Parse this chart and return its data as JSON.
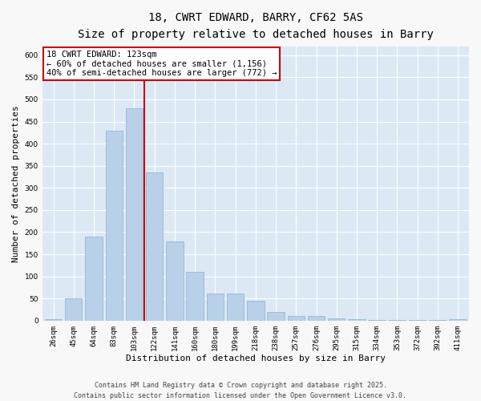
{
  "title": "18, CWRT EDWARD, BARRY, CF62 5AS",
  "subtitle": "Size of property relative to detached houses in Barry",
  "xlabel": "Distribution of detached houses by size in Barry",
  "ylabel": "Number of detached properties",
  "categories": [
    "26sqm",
    "45sqm",
    "64sqm",
    "83sqm",
    "103sqm",
    "122sqm",
    "141sqm",
    "160sqm",
    "180sqm",
    "199sqm",
    "218sqm",
    "238sqm",
    "257sqm",
    "276sqm",
    "295sqm",
    "315sqm",
    "334sqm",
    "353sqm",
    "372sqm",
    "392sqm",
    "411sqm"
  ],
  "values": [
    3,
    50,
    190,
    430,
    480,
    335,
    180,
    110,
    62,
    62,
    45,
    20,
    10,
    10,
    5,
    3,
    2,
    1,
    2,
    1,
    3
  ],
  "bar_color": "#b8d0e8",
  "bar_edge_color": "#8ab0d0",
  "vline_x_index": 5,
  "vline_color": "#cc0000",
  "annotation_text": "18 CWRT EDWARD: 123sqm\n← 60% of detached houses are smaller (1,156)\n40% of semi-detached houses are larger (772) →",
  "annotation_box_facecolor": "#ffffff",
  "annotation_box_edgecolor": "#cc0000",
  "ylim": [
    0,
    620
  ],
  "yticks": [
    0,
    50,
    100,
    150,
    200,
    250,
    300,
    350,
    400,
    450,
    500,
    550,
    600
  ],
  "plot_bg_color": "#dce9f5",
  "fig_bg_color": "#f8f8f8",
  "grid_color": "#ffffff",
  "title_fontsize": 10,
  "subtitle_fontsize": 9,
  "annotation_fontsize": 7.5,
  "ylabel_fontsize": 8,
  "xlabel_fontsize": 8,
  "tick_fontsize": 6.5,
  "footer_fontsize": 6,
  "footer_line1": "Contains HM Land Registry data © Crown copyright and database right 2025.",
  "footer_line2": "Contains public sector information licensed under the Open Government Licence v3.0."
}
